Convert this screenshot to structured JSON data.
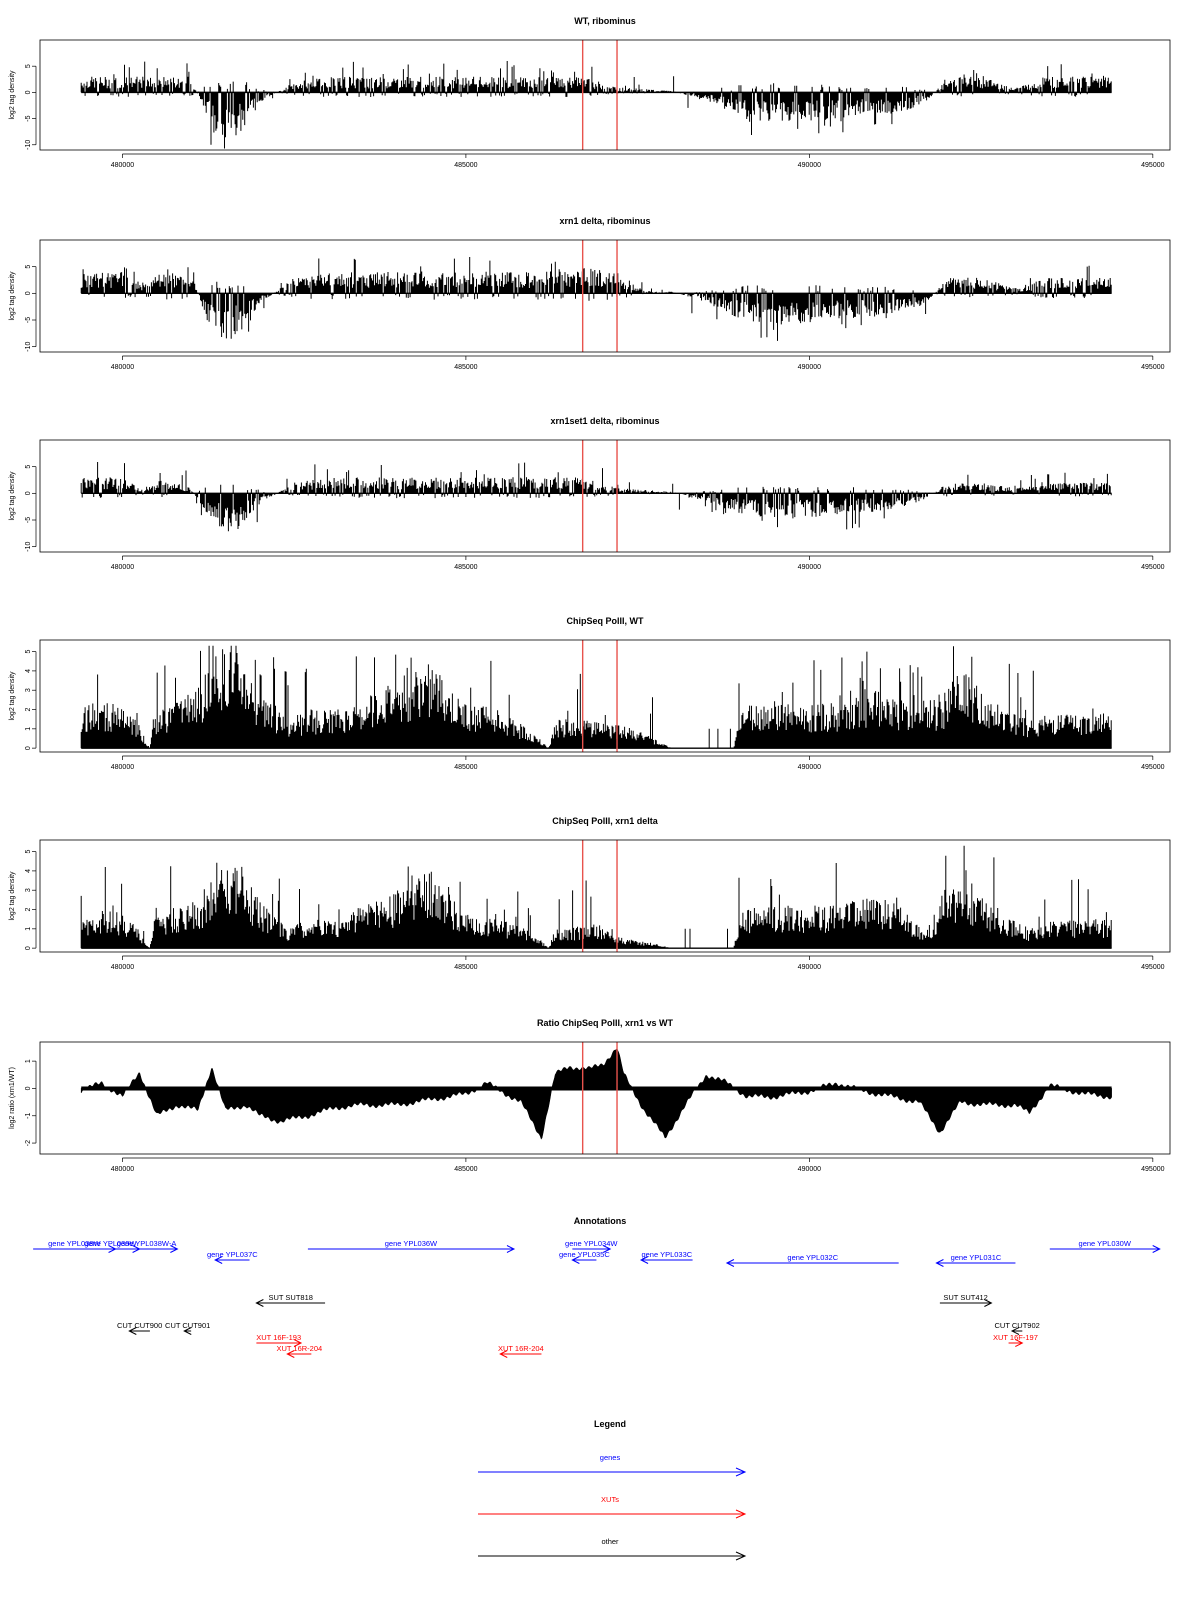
{
  "colors": {
    "genes": "#0000ff",
    "xuts": "#ff0000",
    "other": "#000000",
    "marker": "#e8534d",
    "signal": "#000000"
  },
  "chart_data": [
    {
      "type": "bar",
      "title": "WT, ribominus",
      "ylabel": "log2 tag density",
      "xlim": [
        479400,
        494400
      ],
      "ylim": [
        -11,
        10
      ],
      "yticks": [
        -10,
        -5,
        0,
        5
      ],
      "yticklabels": [
        "-10",
        "-5",
        "0",
        "5"
      ],
      "xticks": [
        480000,
        485000,
        490000,
        495000
      ],
      "xticklabels": [
        "480000",
        "485000",
        "490000",
        "495000"
      ],
      "markers": [
        486700,
        487200
      ],
      "profile": [
        [
          479400,
          3
        ],
        [
          480000,
          3
        ],
        [
          480300,
          3
        ],
        [
          480600,
          3
        ],
        [
          481000,
          3
        ],
        [
          481300,
          -8
        ],
        [
          481700,
          -9
        ],
        [
          482000,
          -2
        ],
        [
          482500,
          2
        ],
        [
          483000,
          3
        ],
        [
          484000,
          3
        ],
        [
          485000,
          3
        ],
        [
          486000,
          3
        ],
        [
          486700,
          3
        ],
        [
          487200,
          1
        ],
        [
          488000,
          0.3
        ],
        [
          488600,
          -2
        ],
        [
          489000,
          -5
        ],
        [
          489500,
          -6
        ],
        [
          490500,
          -5
        ],
        [
          491300,
          -4
        ],
        [
          491700,
          -2
        ],
        [
          492000,
          3
        ],
        [
          492500,
          3
        ],
        [
          493000,
          1
        ],
        [
          493500,
          3
        ],
        [
          494400,
          3
        ]
      ]
    },
    {
      "type": "bar",
      "title": "xrn1 delta, ribominus",
      "ylabel": "log2 tag density",
      "xlim": [
        479400,
        494400
      ],
      "ylim": [
        -11,
        10
      ],
      "yticks": [
        -10,
        -5,
        0,
        5
      ],
      "yticklabels": [
        "-10",
        "-5",
        "0",
        "5"
      ],
      "xticks": [
        480000,
        485000,
        490000,
        495000
      ],
      "xticklabels": [
        "480000",
        "485000",
        "490000",
        "495000"
      ],
      "markers": [
        486700,
        487200
      ],
      "profile": [
        [
          479400,
          4
        ],
        [
          480000,
          4
        ],
        [
          480300,
          2
        ],
        [
          480600,
          4
        ],
        [
          481000,
          4
        ],
        [
          481300,
          -8
        ],
        [
          481700,
          -9
        ],
        [
          482000,
          -2
        ],
        [
          482500,
          3
        ],
        [
          483000,
          4
        ],
        [
          484000,
          4
        ],
        [
          485000,
          4
        ],
        [
          486000,
          4
        ],
        [
          486700,
          5
        ],
        [
          487200,
          4
        ],
        [
          487600,
          0.5
        ],
        [
          488000,
          0.3
        ],
        [
          488600,
          -2
        ],
        [
          489000,
          -5
        ],
        [
          489500,
          -6
        ],
        [
          490500,
          -5
        ],
        [
          491300,
          -4
        ],
        [
          491700,
          -2
        ],
        [
          492000,
          3
        ],
        [
          492500,
          3
        ],
        [
          493000,
          1
        ],
        [
          493500,
          3
        ],
        [
          494400,
          3
        ]
      ]
    },
    {
      "type": "bar",
      "title": "xrn1set1 delta, ribominus",
      "ylabel": "log2 tag density",
      "xlim": [
        479400,
        494400
      ],
      "ylim": [
        -11,
        10
      ],
      "yticks": [
        -10,
        -5,
        0,
        5
      ],
      "yticklabels": [
        "-10",
        "-5",
        "0",
        "5"
      ],
      "xticks": [
        480000,
        485000,
        490000,
        495000
      ],
      "xticklabels": [
        "480000",
        "485000",
        "490000",
        "495000"
      ],
      "markers": [
        486700,
        487200
      ],
      "profile": [
        [
          479400,
          3
        ],
        [
          480000,
          3
        ],
        [
          480300,
          1
        ],
        [
          480600,
          3
        ],
        [
          481000,
          1
        ],
        [
          481300,
          -6
        ],
        [
          481700,
          -7
        ],
        [
          482000,
          -2
        ],
        [
          482500,
          2
        ],
        [
          483000,
          3
        ],
        [
          484000,
          3
        ],
        [
          485000,
          3
        ],
        [
          486000,
          3
        ],
        [
          486700,
          3
        ],
        [
          487200,
          1
        ],
        [
          488000,
          0.3
        ],
        [
          488600,
          -2
        ],
        [
          489000,
          -4
        ],
        [
          489500,
          -5
        ],
        [
          490500,
          -4
        ],
        [
          491300,
          -3
        ],
        [
          491700,
          -1
        ],
        [
          492000,
          2
        ],
        [
          492500,
          2
        ],
        [
          493000,
          1
        ],
        [
          493500,
          2
        ],
        [
          494400,
          2
        ]
      ]
    },
    {
      "type": "bar",
      "title": "ChipSeq PolII, WT",
      "ylabel": "log2 tag density",
      "xlim": [
        479400,
        494400
      ],
      "ylim": [
        -0.2,
        5.6
      ],
      "yticks": [
        0,
        1,
        2,
        3,
        4,
        5
      ],
      "yticklabels": [
        "0",
        "1",
        "2",
        "3",
        "4",
        "5"
      ],
      "xticks": [
        480000,
        485000,
        490000,
        495000
      ],
      "xticklabels": [
        "480000",
        "485000",
        "490000",
        "495000"
      ],
      "markers": [
        486700,
        487200
      ],
      "profile": [
        [
          479400,
          2.2
        ],
        [
          479800,
          2.5
        ],
        [
          480200,
          1.5
        ],
        [
          480400,
          0
        ],
        [
          480450,
          1.8
        ],
        [
          480800,
          2.5
        ],
        [
          481100,
          3.2
        ],
        [
          481400,
          5.2
        ],
        [
          481700,
          5.0
        ],
        [
          482000,
          3.0
        ],
        [
          482400,
          1.5
        ],
        [
          482700,
          2
        ],
        [
          483200,
          2
        ],
        [
          483600,
          2.8
        ],
        [
          484000,
          3.5
        ],
        [
          484500,
          4.5
        ],
        [
          484900,
          2.5
        ],
        [
          485500,
          2
        ],
        [
          486000,
          0.8
        ],
        [
          486200,
          0
        ],
        [
          486300,
          1.5
        ],
        [
          486900,
          1.5
        ],
        [
          487300,
          1.2
        ],
        [
          487700,
          0.6
        ],
        [
          488000,
          0
        ],
        [
          488900,
          0
        ],
        [
          489000,
          2.2
        ],
        [
          489500,
          2.5
        ],
        [
          490000,
          2.2
        ],
        [
          490500,
          2.5
        ],
        [
          491000,
          3.0
        ],
        [
          491400,
          2.5
        ],
        [
          491900,
          2.5
        ],
        [
          492200,
          4.1
        ],
        [
          492700,
          2.5
        ],
        [
          493200,
          1.5
        ],
        [
          493600,
          1.8
        ],
        [
          494400,
          1.8
        ]
      ]
    },
    {
      "type": "bar",
      "title": "ChipSeq PolII, xrn1 delta",
      "ylabel": "log2 tag density",
      "xlim": [
        479400,
        494400
      ],
      "ylim": [
        -0.2,
        5.6
      ],
      "yticks": [
        0,
        1,
        2,
        3,
        4,
        5
      ],
      "yticklabels": [
        "0",
        "1",
        "2",
        "3",
        "4",
        "5"
      ],
      "xticks": [
        480000,
        485000,
        490000,
        495000
      ],
      "xticklabels": [
        "480000",
        "485000",
        "490000",
        "495000"
      ],
      "markers": [
        486700,
        487200
      ],
      "profile": [
        [
          479400,
          1.5
        ],
        [
          479800,
          2.2
        ],
        [
          480200,
          1.2
        ],
        [
          480400,
          0
        ],
        [
          480450,
          1.5
        ],
        [
          480800,
          2.2
        ],
        [
          481100,
          2.5
        ],
        [
          481400,
          4.6
        ],
        [
          481700,
          4.6
        ],
        [
          482000,
          2.5
        ],
        [
          482400,
          1.0
        ],
        [
          482700,
          1.5
        ],
        [
          483200,
          1.5
        ],
        [
          483600,
          2.5
        ],
        [
          484000,
          3.0
        ],
        [
          484500,
          4.5
        ],
        [
          484900,
          2.0
        ],
        [
          485500,
          1.5
        ],
        [
          486000,
          0.8
        ],
        [
          486200,
          0
        ],
        [
          486300,
          1.0
        ],
        [
          486900,
          1.3
        ],
        [
          487300,
          0.5
        ],
        [
          487700,
          0.3
        ],
        [
          488000,
          0
        ],
        [
          488900,
          0
        ],
        [
          489000,
          2.0
        ],
        [
          489500,
          2.3
        ],
        [
          490000,
          2.2
        ],
        [
          490500,
          2.3
        ],
        [
          491000,
          2.8
        ],
        [
          491400,
          2.0
        ],
        [
          491700,
          0.8
        ],
        [
          492000,
          3.3
        ],
        [
          492700,
          2.2
        ],
        [
          493200,
          1.0
        ],
        [
          493600,
          1.5
        ],
        [
          494400,
          1.5
        ]
      ]
    },
    {
      "type": "area",
      "title": "Ratio ChipSeq PolII, xrn1 vs WT",
      "ylabel": "log2 ratio (xrn1/WT)",
      "xlim": [
        479400,
        494400
      ],
      "ylim": [
        -2.4,
        1.7
      ],
      "yticks": [
        -2,
        -1,
        0,
        1
      ],
      "yticklabels": [
        "-2",
        "-1",
        "0",
        "1"
      ],
      "xticks": [
        480000,
        485000,
        490000,
        495000
      ],
      "xticklabels": [
        "480000",
        "485000",
        "490000",
        "495000"
      ],
      "markers": [
        486700,
        487200
      ],
      "profile": [
        [
          479400,
          -0.1
        ],
        [
          479700,
          0.2
        ],
        [
          480000,
          -0.3
        ],
        [
          480250,
          0.6
        ],
        [
          480500,
          -1.0
        ],
        [
          480800,
          -0.6
        ],
        [
          481100,
          -0.8
        ],
        [
          481300,
          0.8
        ],
        [
          481500,
          -0.8
        ],
        [
          481800,
          -0.6
        ],
        [
          482000,
          -1.0
        ],
        [
          482300,
          -1.2
        ],
        [
          482700,
          -1.0
        ],
        [
          483100,
          -0.7
        ],
        [
          483500,
          -0.6
        ],
        [
          484000,
          -0.6
        ],
        [
          484500,
          -0.4
        ],
        [
          485000,
          -0.2
        ],
        [
          485300,
          0.2
        ],
        [
          485800,
          -0.5
        ],
        [
          486100,
          -1.8
        ],
        [
          486300,
          0.5
        ],
        [
          486500,
          0.8
        ],
        [
          486800,
          0.7
        ],
        [
          487000,
          0.9
        ],
        [
          487200,
          1.5
        ],
        [
          487300,
          0.5
        ],
        [
          487600,
          -0.8
        ],
        [
          487900,
          -1.8
        ],
        [
          488200,
          -0.6
        ],
        [
          488500,
          0.5
        ],
        [
          488800,
          0.2
        ],
        [
          489100,
          -0.3
        ],
        [
          489500,
          -0.3
        ],
        [
          490000,
          -0.1
        ],
        [
          490400,
          0.2
        ],
        [
          490800,
          -0.1
        ],
        [
          491200,
          -0.3
        ],
        [
          491600,
          -0.5
        ],
        [
          491900,
          -1.6
        ],
        [
          492200,
          -0.5
        ],
        [
          492600,
          -0.6
        ],
        [
          493000,
          -0.6
        ],
        [
          493200,
          -0.9
        ],
        [
          493500,
          0.1
        ],
        [
          494000,
          -0.2
        ],
        [
          494400,
          -0.3
        ]
      ]
    }
  ],
  "annotations": {
    "title": "Annotations",
    "items": [
      {
        "label": "gene YPL038W",
        "type": "genes",
        "start": 478700,
        "end": 479900,
        "dir": "right",
        "row": 0
      },
      {
        "label": "gene YPL039W",
        "type": "genes",
        "start": 479400,
        "end": 480250,
        "dir": "right",
        "row": 0
      },
      {
        "label": "gene YPL038W-A",
        "type": "genes",
        "start": 479900,
        "end": 480800,
        "dir": "right",
        "row": 0
      },
      {
        "label": "gene YPL037C",
        "type": "genes",
        "start": 481350,
        "end": 481850,
        "dir": "left",
        "row": 1
      },
      {
        "label": "gene YPL036W",
        "type": "genes",
        "start": 482700,
        "end": 485700,
        "dir": "right",
        "row": 0
      },
      {
        "label": "gene YPL034W",
        "type": "genes",
        "start": 486550,
        "end": 487100,
        "dir": "right",
        "row": 0
      },
      {
        "label": "gene YPL035C",
        "type": "genes",
        "start": 486550,
        "end": 486900,
        "dir": "left",
        "row": 1
      },
      {
        "label": "gene YPL033C",
        "type": "genes",
        "start": 487550,
        "end": 488300,
        "dir": "left",
        "row": 1
      },
      {
        "label": "gene YPL032C",
        "type": "genes",
        "start": 488800,
        "end": 491300,
        "dir": "left",
        "row": 2
      },
      {
        "label": "gene YPL031C",
        "type": "genes",
        "start": 491850,
        "end": 493000,
        "dir": "left",
        "row": 2
      },
      {
        "label": "gene YPL030W",
        "type": "genes",
        "start": 493500,
        "end": 495100,
        "dir": "right",
        "row": 0
      },
      {
        "label": "SUT SUT818",
        "type": "other",
        "start": 481950,
        "end": 482950,
        "dir": "left",
        "row": 3
      },
      {
        "label": "SUT SUT412",
        "type": "other",
        "start": 491900,
        "end": 492650,
        "dir": "right",
        "row": 3
      },
      {
        "label": "CUT CUT900",
        "type": "other",
        "start": 480100,
        "end": 480400,
        "dir": "left",
        "row": 4
      },
      {
        "label": "CUT CUT901",
        "type": "other",
        "start": 480900,
        "end": 481000,
        "dir": "left",
        "row": 4
      },
      {
        "label": "CUT CUT902",
        "type": "other",
        "start": 492950,
        "end": 493100,
        "dir": "left",
        "row": 4
      },
      {
        "label": "XUT 16F-193",
        "type": "xuts",
        "start": 481950,
        "end": 482600,
        "dir": "right",
        "row": 5
      },
      {
        "label": "XUT 16R-204",
        "type": "xuts",
        "start": 482400,
        "end": 482750,
        "dir": "left",
        "row": 6
      },
      {
        "label": "XUT 16R-204",
        "type": "xuts",
        "start": 485500,
        "end": 486100,
        "dir": "left",
        "row": 6
      },
      {
        "label": "XUT 16F-197",
        "type": "xuts",
        "start": 492900,
        "end": 493100,
        "dir": "right",
        "row": 5
      }
    ]
  },
  "legend": {
    "title": "Legend",
    "items": [
      {
        "label": "genes",
        "type": "genes"
      },
      {
        "label": "XUTs",
        "type": "xuts"
      },
      {
        "label": "other",
        "type": "other"
      }
    ]
  }
}
